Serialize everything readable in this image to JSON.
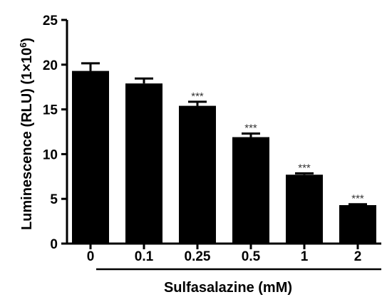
{
  "chart_data": {
    "type": "bar",
    "categories": [
      "0",
      "0.1",
      "0.25",
      "0.5",
      "1",
      "2"
    ],
    "values": [
      19.3,
      17.9,
      15.4,
      11.9,
      7.7,
      4.3
    ],
    "errors": [
      0.85,
      0.55,
      0.45,
      0.4,
      0.15,
      0.1
    ],
    "annotations": [
      "",
      "",
      "***",
      "***",
      "***",
      "***"
    ],
    "xlabel": "Sulfasalazine (mM)",
    "ylabel_main": "Luminescence  (RLU) (1×10",
    "ylabel_sup": "6",
    "ylabel_close": ")",
    "ylim": [
      0,
      25
    ],
    "yticks": [
      "0",
      "5",
      "10",
      "15",
      "20",
      "25"
    ],
    "grid": false,
    "bar_color": "#000000"
  }
}
